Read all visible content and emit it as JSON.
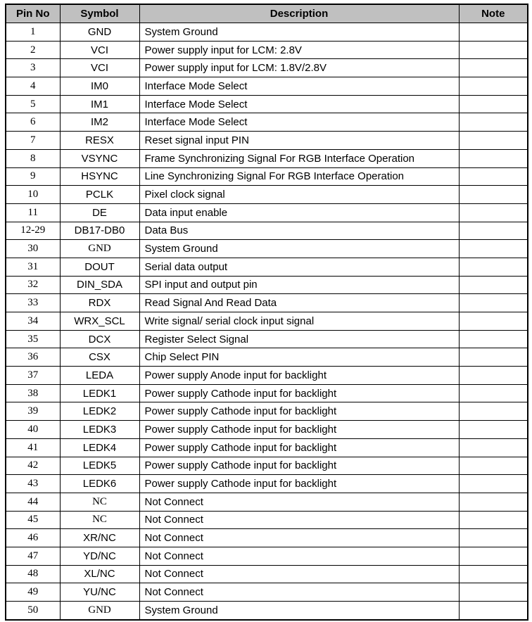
{
  "colors": {
    "header_bg": "#c0c0c0",
    "border": "#000000",
    "text": "#000000",
    "page_bg": "#ffffff"
  },
  "table": {
    "headers": {
      "pin": "Pin No",
      "symbol": "Symbol",
      "description": "Description",
      "note": "Note"
    },
    "rows": [
      {
        "pin": "1",
        "symbol": "GND",
        "symbol_serif": false,
        "description": "System Ground",
        "note": ""
      },
      {
        "pin": "2",
        "symbol": "VCI",
        "symbol_serif": false,
        "description": "Power supply input for LCM: 2.8V",
        "note": ""
      },
      {
        "pin": "3",
        "symbol": "VCI",
        "symbol_serif": false,
        "description": "Power supply input for LCM: 1.8V/2.8V",
        "note": ""
      },
      {
        "pin": "4",
        "symbol": "IM0",
        "symbol_serif": false,
        "description": "Interface Mode Select",
        "note": ""
      },
      {
        "pin": "5",
        "symbol": "IM1",
        "symbol_serif": false,
        "description": "Interface Mode Select",
        "note": ""
      },
      {
        "pin": "6",
        "symbol": "IM2",
        "symbol_serif": false,
        "description": "Interface Mode Select",
        "note": ""
      },
      {
        "pin": "7",
        "symbol": "RESX",
        "symbol_serif": false,
        "description": "Reset signal input PIN",
        "note": ""
      },
      {
        "pin": "8",
        "symbol": "VSYNC",
        "symbol_serif": false,
        "description": "Frame Synchronizing Signal For RGB Interface Operation",
        "note": ""
      },
      {
        "pin": "9",
        "symbol": "HSYNC",
        "symbol_serif": false,
        "description": "Line Synchronizing Signal For RGB Interface Operation",
        "note": ""
      },
      {
        "pin": "10",
        "symbol": "PCLK",
        "symbol_serif": false,
        "description": "Pixel clock signal",
        "note": ""
      },
      {
        "pin": "11",
        "symbol": "DE",
        "symbol_serif": false,
        "description": "Data input enable",
        "note": ""
      },
      {
        "pin": "12-29",
        "symbol": "DB17-DB0",
        "symbol_serif": false,
        "description": "Data Bus",
        "note": ""
      },
      {
        "pin": "30",
        "symbol": "GND",
        "symbol_serif": true,
        "description": "System Ground",
        "note": ""
      },
      {
        "pin": "31",
        "symbol": "DOUT",
        "symbol_serif": false,
        "description": "Serial data output",
        "note": ""
      },
      {
        "pin": "32",
        "symbol": "DIN_SDA",
        "symbol_serif": false,
        "description": "SPI input and output pin",
        "note": ""
      },
      {
        "pin": "33",
        "symbol": "RDX",
        "symbol_serif": false,
        "description": "Read Signal And Read Data",
        "note": ""
      },
      {
        "pin": "34",
        "symbol": "WRX_SCL",
        "symbol_serif": false,
        "description": "Write signal/ serial clock input signal",
        "note": ""
      },
      {
        "pin": "35",
        "symbol": "DCX",
        "symbol_serif": false,
        "description": "Register Select Signal",
        "note": ""
      },
      {
        "pin": "36",
        "symbol": "CSX",
        "symbol_serif": false,
        "description": "Chip Select PIN",
        "note": ""
      },
      {
        "pin": "37",
        "symbol": "LEDA",
        "symbol_serif": false,
        "description": "Power supply Anode input for backlight",
        "note": ""
      },
      {
        "pin": "38",
        "symbol": "LEDK1",
        "symbol_serif": false,
        "description": "Power supply Cathode input for backlight",
        "note": ""
      },
      {
        "pin": "39",
        "symbol": "LEDK2",
        "symbol_serif": false,
        "description": "Power supply Cathode input for backlight",
        "note": ""
      },
      {
        "pin": "40",
        "symbol": "LEDK3",
        "symbol_serif": false,
        "description": "Power supply Cathode input for backlight",
        "note": ""
      },
      {
        "pin": "41",
        "symbol": "LEDK4",
        "symbol_serif": false,
        "description": "Power supply Cathode input for backlight",
        "note": ""
      },
      {
        "pin": "42",
        "symbol": "LEDK5",
        "symbol_serif": false,
        "description": "Power supply Cathode input for backlight",
        "note": ""
      },
      {
        "pin": "43",
        "symbol": "LEDK6",
        "symbol_serif": false,
        "description": "Power supply Cathode input for backlight",
        "note": ""
      },
      {
        "pin": "44",
        "symbol": "NC",
        "symbol_serif": true,
        "description": "Not Connect",
        "note": ""
      },
      {
        "pin": "45",
        "symbol": "NC",
        "symbol_serif": true,
        "description": "Not Connect",
        "note": ""
      },
      {
        "pin": "46",
        "symbol": "XR/NC",
        "symbol_serif": false,
        "description": "Not Connect",
        "note": ""
      },
      {
        "pin": "47",
        "symbol": "YD/NC",
        "symbol_serif": false,
        "description": "Not Connect",
        "note": ""
      },
      {
        "pin": "48",
        "symbol": "XL/NC",
        "symbol_serif": false,
        "description": "Not Connect",
        "note": ""
      },
      {
        "pin": "49",
        "symbol": "YU/NC",
        "symbol_serif": false,
        "description": "Not Connect",
        "note": ""
      },
      {
        "pin": "50",
        "symbol": "GND",
        "symbol_serif": true,
        "description": "System Ground",
        "note": ""
      }
    ]
  }
}
